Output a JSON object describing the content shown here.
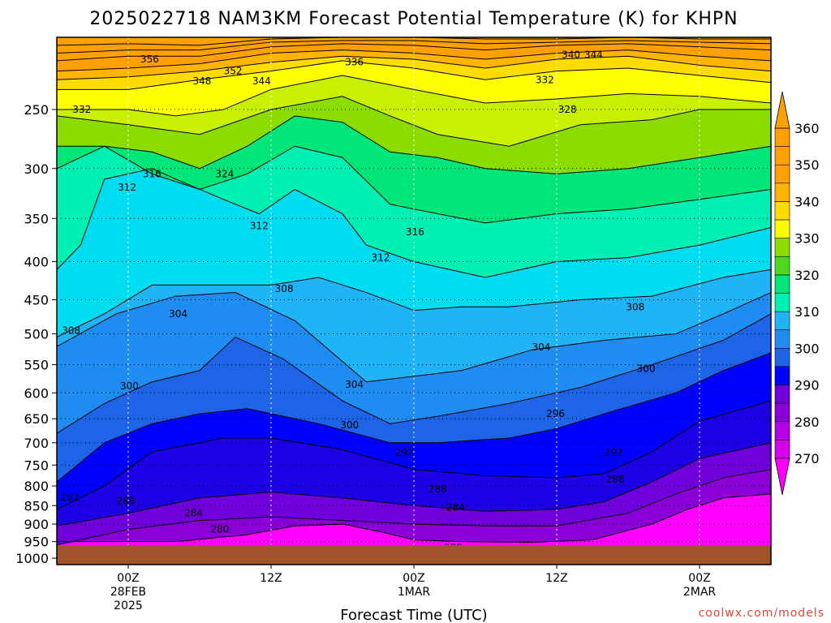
{
  "title": "2025022718 NAM3KM Forecast Potential Temperature (K) for KHPN",
  "credit": "coolwx.com/models",
  "colors": {
    "bands": [
      "#ff00ff",
      "#d800ec",
      "#b400e6",
      "#8c00d8",
      "#7000dc",
      "#1e00e6",
      "#0000ff",
      "#1e64e6",
      "#1e8cf0",
      "#1eb4f5",
      "#00dcf0",
      "#00f0b4",
      "#00e678",
      "#50d81e",
      "#8cdc00",
      "#c8f000",
      "#ffff00",
      "#ffdc00",
      "#ffb400",
      "#ffa000"
    ],
    "ground": "#a0522d"
  },
  "chart_data": {
    "type": "contour-timeheight",
    "title": "2025022718 NAM3KM Forecast Potential Temperature (K) for KHPN",
    "xlabel": "Forecast Time (UTC)",
    "ylabel": "",
    "x_ticks": [
      {
        "label": "00Z",
        "sub": "28FEB",
        "sub2": "2025",
        "hour": 6
      },
      {
        "label": "12Z",
        "sub": "",
        "sub2": "",
        "hour": 18
      },
      {
        "label": "00Z",
        "sub": "1MAR",
        "sub2": "",
        "hour": 30
      },
      {
        "label": "12Z",
        "sub": "",
        "sub2": "",
        "hour": 42
      },
      {
        "label": "00Z",
        "sub": "2MAR",
        "sub2": "",
        "hour": 54
      }
    ],
    "x_range_hours": [
      0,
      60
    ],
    "y_ticks": [
      "250",
      "300",
      "350",
      "400",
      "450",
      "500",
      "550",
      "600",
      "650",
      "700",
      "750",
      "800",
      "850",
      "900",
      "950",
      "1000"
    ],
    "y_range_hpa": [
      1020,
      200
    ],
    "colorbar": [
      270,
      280,
      290,
      300,
      310,
      320,
      330,
      340,
      350,
      360
    ],
    "contour_interval": 4,
    "contours": [
      {
        "value": 280,
        "label": "280",
        "points": [
          [
            10,
            950
          ],
          [
            16,
            930
          ],
          [
            20,
            905
          ],
          [
            24,
            900
          ],
          [
            27,
            920
          ],
          [
            30,
            945
          ],
          [
            34,
            950
          ],
          [
            40,
            952
          ],
          [
            45,
            945
          ],
          [
            50,
            900
          ],
          [
            53,
            860
          ],
          [
            56,
            830
          ],
          [
            60,
            820
          ]
        ]
      },
      {
        "value": 284,
        "label": "284",
        "points": [
          [
            0,
            960
          ],
          [
            6,
            915
          ],
          [
            12,
            890
          ],
          [
            18,
            880
          ],
          [
            24,
            890
          ],
          [
            30,
            900
          ],
          [
            36,
            905
          ],
          [
            42,
            905
          ],
          [
            48,
            870
          ],
          [
            52,
            820
          ],
          [
            56,
            780
          ],
          [
            60,
            760
          ]
        ]
      },
      {
        "value": 288,
        "label": "288",
        "points": [
          [
            0,
            905
          ],
          [
            6,
            870
          ],
          [
            12,
            830
          ],
          [
            18,
            815
          ],
          [
            24,
            830
          ],
          [
            30,
            850
          ],
          [
            36,
            865
          ],
          [
            42,
            860
          ],
          [
            46,
            840
          ],
          [
            50,
            790
          ],
          [
            54,
            735
          ],
          [
            60,
            700
          ]
        ]
      },
      {
        "value": 292,
        "label": "292",
        "points": [
          [
            0,
            860
          ],
          [
            4,
            800
          ],
          [
            8,
            720
          ],
          [
            14,
            690
          ],
          [
            18,
            690
          ],
          [
            24,
            715
          ],
          [
            30,
            760
          ],
          [
            36,
            775
          ],
          [
            42,
            780
          ],
          [
            46,
            770
          ],
          [
            50,
            720
          ],
          [
            54,
            655
          ],
          [
            60,
            615
          ]
        ]
      },
      {
        "value": 296,
        "label": "296",
        "points": [
          [
            0,
            790
          ],
          [
            4,
            700
          ],
          [
            8,
            660
          ],
          [
            12,
            640
          ],
          [
            16,
            630
          ],
          [
            22,
            660
          ],
          [
            28,
            700
          ],
          [
            32,
            700
          ],
          [
            38,
            690
          ],
          [
            42,
            670
          ],
          [
            46,
            640
          ],
          [
            52,
            600
          ],
          [
            56,
            560
          ],
          [
            60,
            530
          ]
        ]
      },
      {
        "value": 300,
        "label": "300",
        "points": [
          [
            0,
            680
          ],
          [
            4,
            620
          ],
          [
            8,
            580
          ],
          [
            12,
            560
          ],
          [
            15,
            505
          ],
          [
            19,
            540
          ],
          [
            24,
            615
          ],
          [
            28,
            660
          ],
          [
            32,
            645
          ],
          [
            38,
            620
          ],
          [
            44,
            590
          ],
          [
            50,
            550
          ],
          [
            56,
            510
          ],
          [
            60,
            470
          ]
        ]
      },
      {
        "value": 304,
        "label": "304",
        "points": [
          [
            0,
            520
          ],
          [
            5,
            470
          ],
          [
            10,
            445
          ],
          [
            15,
            440
          ],
          [
            20,
            480
          ],
          [
            26,
            580
          ],
          [
            30,
            570
          ],
          [
            34,
            560
          ],
          [
            40,
            525
          ],
          [
            46,
            510
          ],
          [
            52,
            500
          ],
          [
            56,
            470
          ],
          [
            60,
            440
          ]
        ]
      },
      {
        "value": 308,
        "label": "308",
        "points": [
          [
            0,
            505
          ],
          [
            4,
            470
          ],
          [
            8,
            430
          ],
          [
            14,
            430
          ],
          [
            18,
            430
          ],
          [
            22,
            420
          ],
          [
            26,
            440
          ],
          [
            30,
            465
          ],
          [
            34,
            460
          ],
          [
            38,
            460
          ],
          [
            44,
            450
          ],
          [
            50,
            445
          ],
          [
            56,
            420
          ],
          [
            60,
            410
          ]
        ]
      },
      {
        "value": 312,
        "label": "312",
        "points": [
          [
            0,
            410
          ],
          [
            2,
            380
          ],
          [
            4,
            310
          ],
          [
            6,
            305
          ],
          [
            8,
            300
          ],
          [
            10,
            310
          ],
          [
            14,
            330
          ],
          [
            17,
            345
          ],
          [
            20,
            320
          ],
          [
            24,
            345
          ],
          [
            26,
            380
          ],
          [
            30,
            400
          ],
          [
            36,
            420
          ],
          [
            42,
            400
          ],
          [
            48,
            395
          ],
          [
            54,
            380
          ],
          [
            60,
            360
          ]
        ]
      },
      {
        "value": 316,
        "label": "316",
        "points": [
          [
            0,
            300
          ],
          [
            4,
            280
          ],
          [
            8,
            305
          ],
          [
            12,
            320
          ],
          [
            16,
            305
          ],
          [
            20,
            280
          ],
          [
            24,
            290
          ],
          [
            28,
            335
          ],
          [
            32,
            345
          ],
          [
            36,
            355
          ],
          [
            42,
            345
          ],
          [
            48,
            340
          ],
          [
            54,
            330
          ],
          [
            60,
            320
          ]
        ]
      },
      {
        "value": 324,
        "label": "324",
        "points": [
          [
            0,
            280
          ],
          [
            4,
            280
          ],
          [
            8,
            285
          ],
          [
            12,
            300
          ],
          [
            16,
            280
          ],
          [
            20,
            255
          ],
          [
            24,
            260
          ],
          [
            28,
            285
          ],
          [
            32,
            290
          ],
          [
            36,
            300
          ],
          [
            42,
            305
          ],
          [
            48,
            300
          ],
          [
            54,
            290
          ],
          [
            60,
            280
          ]
        ]
      },
      {
        "value": 328,
        "label": "328",
        "points": [
          [
            0,
            255
          ],
          [
            6,
            262
          ],
          [
            12,
            270
          ],
          [
            18,
            250
          ],
          [
            24,
            240
          ],
          [
            28,
            255
          ],
          [
            32,
            270
          ],
          [
            38,
            280
          ],
          [
            44,
            262
          ],
          [
            50,
            258
          ],
          [
            54,
            250
          ],
          [
            60,
            250
          ]
        ]
      },
      {
        "value": 332,
        "label": "332",
        "points": [
          [
            0,
            250
          ],
          [
            6,
            250
          ],
          [
            10,
            255
          ],
          [
            14,
            250
          ],
          [
            18,
            235
          ],
          [
            24,
            225
          ],
          [
            30,
            235
          ],
          [
            36,
            245
          ],
          [
            42,
            242
          ],
          [
            48,
            238
          ],
          [
            54,
            240
          ],
          [
            60,
            245
          ]
        ]
      },
      {
        "value": 336,
        "label": "336",
        "points": [
          [
            0,
            235
          ],
          [
            6,
            235
          ],
          [
            12,
            228
          ],
          [
            18,
            222
          ],
          [
            24,
            215
          ],
          [
            30,
            220
          ],
          [
            36,
            228
          ],
          [
            42,
            222
          ],
          [
            48,
            220
          ],
          [
            54,
            225
          ],
          [
            60,
            230
          ]
        ]
      },
      {
        "value": 344,
        "label": "344",
        "points": [
          [
            0,
            222
          ],
          [
            6,
            220
          ],
          [
            12,
            217
          ],
          [
            18,
            210
          ],
          [
            24,
            208
          ],
          [
            30,
            210
          ],
          [
            36,
            214
          ],
          [
            42,
            210
          ],
          [
            48,
            208
          ],
          [
            54,
            212
          ],
          [
            60,
            215
          ]
        ]
      },
      {
        "value": 348,
        "label": "348",
        "points": [
          [
            0,
            215
          ],
          [
            6,
            212
          ],
          [
            12,
            212
          ],
          [
            18,
            206
          ],
          [
            24,
            204
          ],
          [
            30,
            205
          ],
          [
            36,
            208
          ],
          [
            42,
            205
          ],
          [
            48,
            204
          ],
          [
            54,
            206
          ],
          [
            60,
            208
          ]
        ]
      },
      {
        "value": 352,
        "label": "352",
        "points": [
          [
            0,
            210
          ],
          [
            6,
            208
          ],
          [
            12,
            208
          ],
          [
            18,
            203
          ],
          [
            24,
            202
          ],
          [
            30,
            202
          ],
          [
            36,
            204
          ],
          [
            42,
            203
          ],
          [
            48,
            202
          ],
          [
            54,
            203
          ],
          [
            60,
            204
          ]
        ]
      },
      {
        "value": 356,
        "label": "356",
        "points": [
          [
            0,
            205
          ],
          [
            6,
            204
          ],
          [
            12,
            205
          ],
          [
            18,
            201
          ],
          [
            24,
            200
          ],
          [
            30,
            200
          ],
          [
            36,
            201
          ],
          [
            42,
            201
          ],
          [
            48,
            200
          ],
          [
            54,
            201
          ],
          [
            60,
            201
          ]
        ]
      },
      {
        "value": 340,
        "label": "340",
        "points": [
          [
            0,
            228
          ],
          [
            6,
            226
          ],
          [
            12,
            222
          ],
          [
            18,
            216
          ],
          [
            24,
            212
          ],
          [
            30,
            214
          ],
          [
            36,
            220
          ],
          [
            42,
            214
          ],
          [
            48,
            212
          ],
          [
            54,
            218
          ],
          [
            60,
            222
          ]
        ]
      }
    ],
    "contour_labels": [
      {
        "text": "356",
        "x": 7.8,
        "p": 214
      },
      {
        "text": "352",
        "x": 14.8,
        "p": 222
      },
      {
        "text": "348",
        "x": 12.2,
        "p": 229
      },
      {
        "text": "344",
        "x": 17.2,
        "p": 229
      },
      {
        "text": "336",
        "x": 25.0,
        "p": 216
      },
      {
        "text": "340",
        "x": 43.2,
        "p": 211
      },
      {
        "text": "344",
        "x": 45.1,
        "p": 211
      },
      {
        "text": "332",
        "x": 2.1,
        "p": 250
      },
      {
        "text": "332",
        "x": 41.0,
        "p": 228
      },
      {
        "text": "328",
        "x": 42.9,
        "p": 250
      },
      {
        "text": "324",
        "x": 14.1,
        "p": 305
      },
      {
        "text": "316",
        "x": 8.0,
        "p": 305
      },
      {
        "text": "312",
        "x": 5.9,
        "p": 318
      },
      {
        "text": "312",
        "x": 17.0,
        "p": 358
      },
      {
        "text": "316",
        "x": 30.1,
        "p": 365
      },
      {
        "text": "312",
        "x": 27.2,
        "p": 395
      },
      {
        "text": "308",
        "x": 19.1,
        "p": 435
      },
      {
        "text": "308",
        "x": 1.2,
        "p": 495
      },
      {
        "text": "308",
        "x": 48.6,
        "p": 460
      },
      {
        "text": "304",
        "x": 10.2,
        "p": 470
      },
      {
        "text": "304",
        "x": 40.7,
        "p": 521
      },
      {
        "text": "304",
        "x": 25.0,
        "p": 585
      },
      {
        "text": "300",
        "x": 6.1,
        "p": 588
      },
      {
        "text": "300",
        "x": 49.5,
        "p": 557
      },
      {
        "text": "300",
        "x": 24.6,
        "p": 663
      },
      {
        "text": "296",
        "x": 41.9,
        "p": 640
      },
      {
        "text": "292",
        "x": 29.2,
        "p": 722
      },
      {
        "text": "292",
        "x": 46.8,
        "p": 722
      },
      {
        "text": "292",
        "x": 1.1,
        "p": 828
      },
      {
        "text": "288",
        "x": 5.8,
        "p": 838
      },
      {
        "text": "288",
        "x": 32.0,
        "p": 808
      },
      {
        "text": "288",
        "x": 46.9,
        "p": 784
      },
      {
        "text": "284",
        "x": 11.5,
        "p": 870
      },
      {
        "text": "284",
        "x": 33.5,
        "p": 855
      },
      {
        "text": "280",
        "x": 13.7,
        "p": 915
      },
      {
        "text": "280",
        "x": 33.3,
        "p": 968
      }
    ]
  }
}
